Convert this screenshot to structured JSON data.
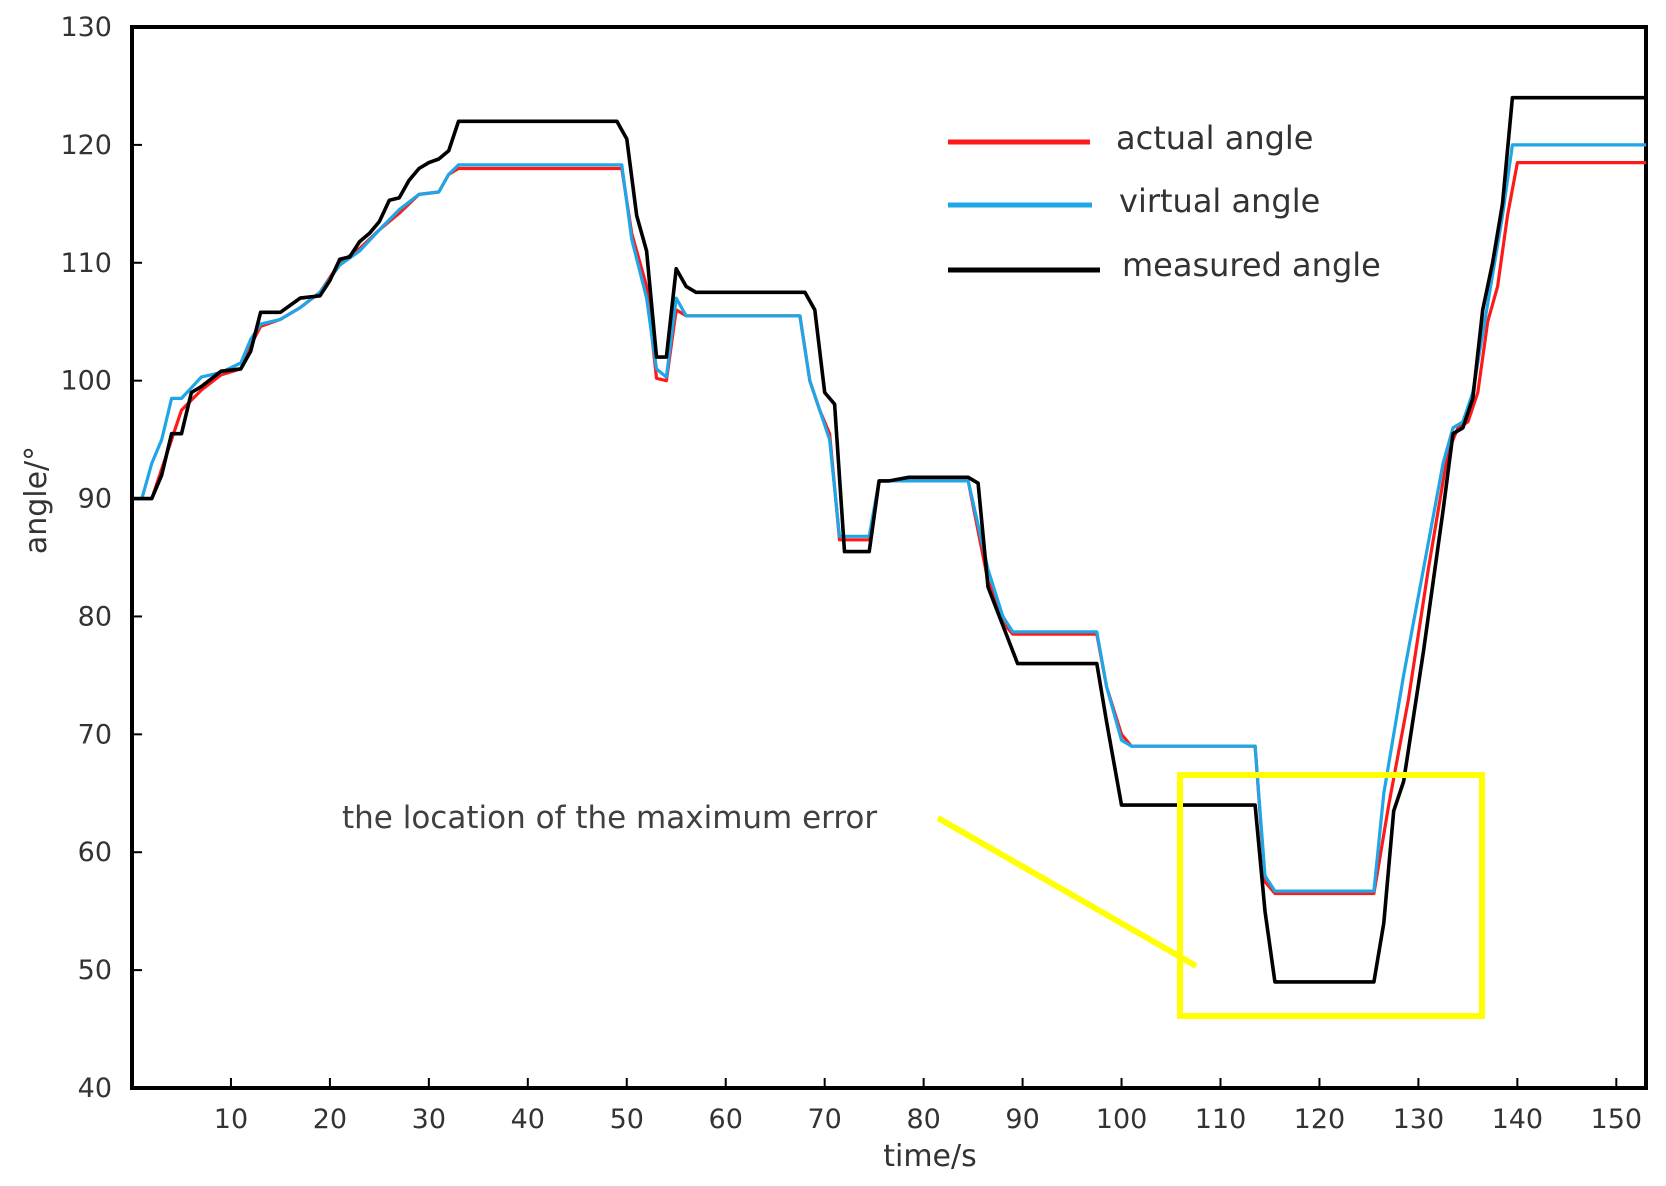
{
  "chart_data": {
    "type": "line",
    "xlabel": "time/s",
    "ylabel": "angle/°",
    "xlim": [
      0,
      153
    ],
    "ylim": [
      40,
      130
    ],
    "xticks": [
      10,
      20,
      30,
      40,
      50,
      60,
      70,
      80,
      90,
      100,
      110,
      120,
      130,
      140,
      150
    ],
    "yticks": [
      40,
      50,
      60,
      70,
      80,
      90,
      100,
      110,
      120,
      130
    ],
    "grid": false,
    "legend_position": "top-right",
    "series": [
      {
        "name": "actual angle",
        "color": "#ff1a1a",
        "x": [
          0,
          2,
          4,
          5,
          7,
          9,
          11,
          12,
          13,
          15,
          17,
          19,
          21,
          23,
          25,
          27,
          29,
          31,
          32,
          33,
          34,
          49.5,
          50.5,
          52,
          53,
          54,
          55,
          56,
          67.5,
          68.5,
          69.5,
          70.5,
          71.5,
          74.5,
          75.5,
          76.5,
          84.5,
          86.5,
          88.5,
          89,
          97.5,
          98.5,
          100,
          101,
          113.5,
          114.5,
          115.5,
          125.5,
          127,
          129,
          131,
          133,
          134,
          135,
          136,
          137,
          138,
          139,
          140,
          153
        ],
        "y": [
          90,
          90,
          95,
          97.5,
          99.2,
          100.5,
          101,
          103,
          104.6,
          105.2,
          106.2,
          107.5,
          110,
          111.2,
          112.8,
          114.2,
          115.8,
          116,
          117.5,
          118,
          118,
          118,
          112.5,
          108,
          100.2,
          100,
          106,
          105.5,
          105.5,
          100,
          97.5,
          95.5,
          86.5,
          86.5,
          91.5,
          91.5,
          91.5,
          83,
          79,
          78.5,
          78.5,
          74,
          70,
          69,
          69,
          57.5,
          56.5,
          56.5,
          64,
          73,
          84,
          94,
          96,
          96.5,
          99,
          105,
          108,
          114,
          118.5,
          118.5
        ]
      },
      {
        "name": "virtual angle",
        "color": "#1fa6e6",
        "x": [
          0,
          1,
          2,
          3,
          4,
          5,
          7,
          9,
          11,
          12,
          13,
          15,
          17,
          19,
          21,
          23,
          25,
          27,
          29,
          31,
          32,
          33,
          49.5,
          50.5,
          52,
          53,
          54,
          55,
          56,
          67.5,
          68.5,
          69.5,
          70.5,
          71.5,
          74.5,
          75.5,
          76.5,
          84.5,
          86.5,
          88,
          89,
          97.5,
          98.5,
          100,
          101,
          113.5,
          114.5,
          115.5,
          125.5,
          126.5,
          128.5,
          130.5,
          132.5,
          133.5,
          134.5,
          135.5,
          136.5,
          137.5,
          138.5,
          139.5,
          153
        ],
        "y": [
          90,
          90,
          93,
          95,
          98.5,
          98.5,
          100.3,
          100.7,
          101.5,
          103.5,
          104.8,
          105.2,
          106.2,
          107.5,
          109.8,
          111,
          112.8,
          114.5,
          115.8,
          116,
          117.5,
          118.3,
          118.3,
          112,
          107,
          101,
          100.3,
          107,
          105.5,
          105.5,
          100,
          97.5,
          95,
          86.8,
          86.8,
          91.5,
          91.5,
          91.5,
          84,
          80,
          78.7,
          78.7,
          74,
          69.5,
          69,
          69,
          58,
          56.7,
          56.7,
          65,
          75,
          84,
          93,
          96,
          96.5,
          99,
          104,
          109,
          114,
          120,
          120
        ]
      },
      {
        "name": "measured angle",
        "color": "#000000",
        "x": [
          0,
          2,
          3,
          4,
          5,
          6,
          7,
          9,
          11,
          12,
          13,
          15,
          17,
          19,
          20,
          21,
          22,
          23,
          24,
          25,
          26,
          27,
          28,
          29,
          30,
          31,
          32,
          33,
          34,
          49,
          50,
          51,
          52,
          53,
          54,
          55,
          56,
          57,
          68,
          69,
          70,
          71,
          72,
          74.5,
          75.5,
          76.5,
          78.5,
          84.5,
          85.5,
          86.5,
          89.5,
          97.5,
          98.5,
          100,
          101,
          113.5,
          114.5,
          115.5,
          125.5,
          126.5,
          127.5,
          128.5,
          130.5,
          132.5,
          133.5,
          134.5,
          135.5,
          136.5,
          137.5,
          138.5,
          139.5,
          153
        ],
        "y": [
          90,
          90,
          92,
          95.5,
          95.5,
          99,
          99.5,
          100.8,
          101,
          102.5,
          105.8,
          105.8,
          107,
          107.2,
          108.5,
          110.3,
          110.5,
          111.8,
          112.5,
          113.5,
          115.3,
          115.5,
          117,
          118,
          118.5,
          118.8,
          119.5,
          122,
          122,
          122,
          120.5,
          114,
          111,
          102,
          102,
          109.5,
          108,
          107.5,
          107.5,
          106,
          99,
          98,
          85.5,
          85.5,
          91.5,
          91.5,
          91.8,
          91.8,
          91.3,
          82.5,
          76,
          76,
          71,
          64,
          64,
          64,
          55,
          49,
          49,
          54,
          63.5,
          66,
          77,
          89,
          95.5,
          96,
          98.5,
          106,
          110,
          115,
          124,
          124
        ]
      }
    ],
    "annotation": {
      "text": "the location of the maximum error",
      "color": "#ffff00"
    }
  }
}
